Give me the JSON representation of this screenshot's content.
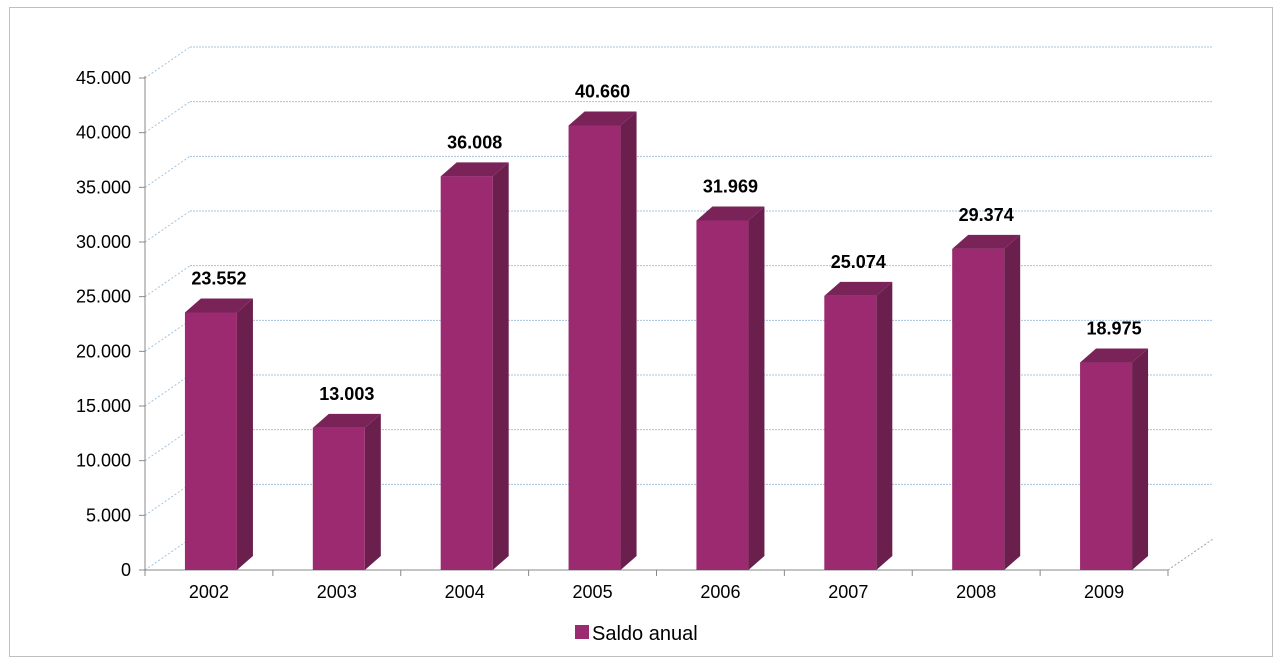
{
  "chart_data": {
    "type": "bar",
    "categories": [
      "2002",
      "2003",
      "2004",
      "2005",
      "2006",
      "2007",
      "2008",
      "2009"
    ],
    "series": [
      {
        "name": "Saldo anual",
        "values": [
          23552,
          13003,
          36008,
          40660,
          31969,
          25074,
          29374,
          18975
        ],
        "labels": [
          "23.552",
          "13.003",
          "36.008",
          "40.660",
          "31.969",
          "25.074",
          "29.374",
          "18.975"
        ],
        "color": "#9b2a70",
        "side_color": "#6a1f4c",
        "top_color": "#7a2358"
      }
    ],
    "ylim": [
      0,
      45000
    ],
    "yticks": [
      0,
      5000,
      10000,
      15000,
      20000,
      25000,
      30000,
      35000,
      40000,
      45000
    ],
    "ytick_labels": [
      "0",
      "5.000",
      "10.000",
      "15.000",
      "20.000",
      "25.000",
      "30.000",
      "35.000",
      "40.000",
      "45.000"
    ],
    "grid": true,
    "gridline_color": "#a6c3dc",
    "legend_position": "bottom",
    "title": "",
    "xlabel": "",
    "ylabel": ""
  }
}
